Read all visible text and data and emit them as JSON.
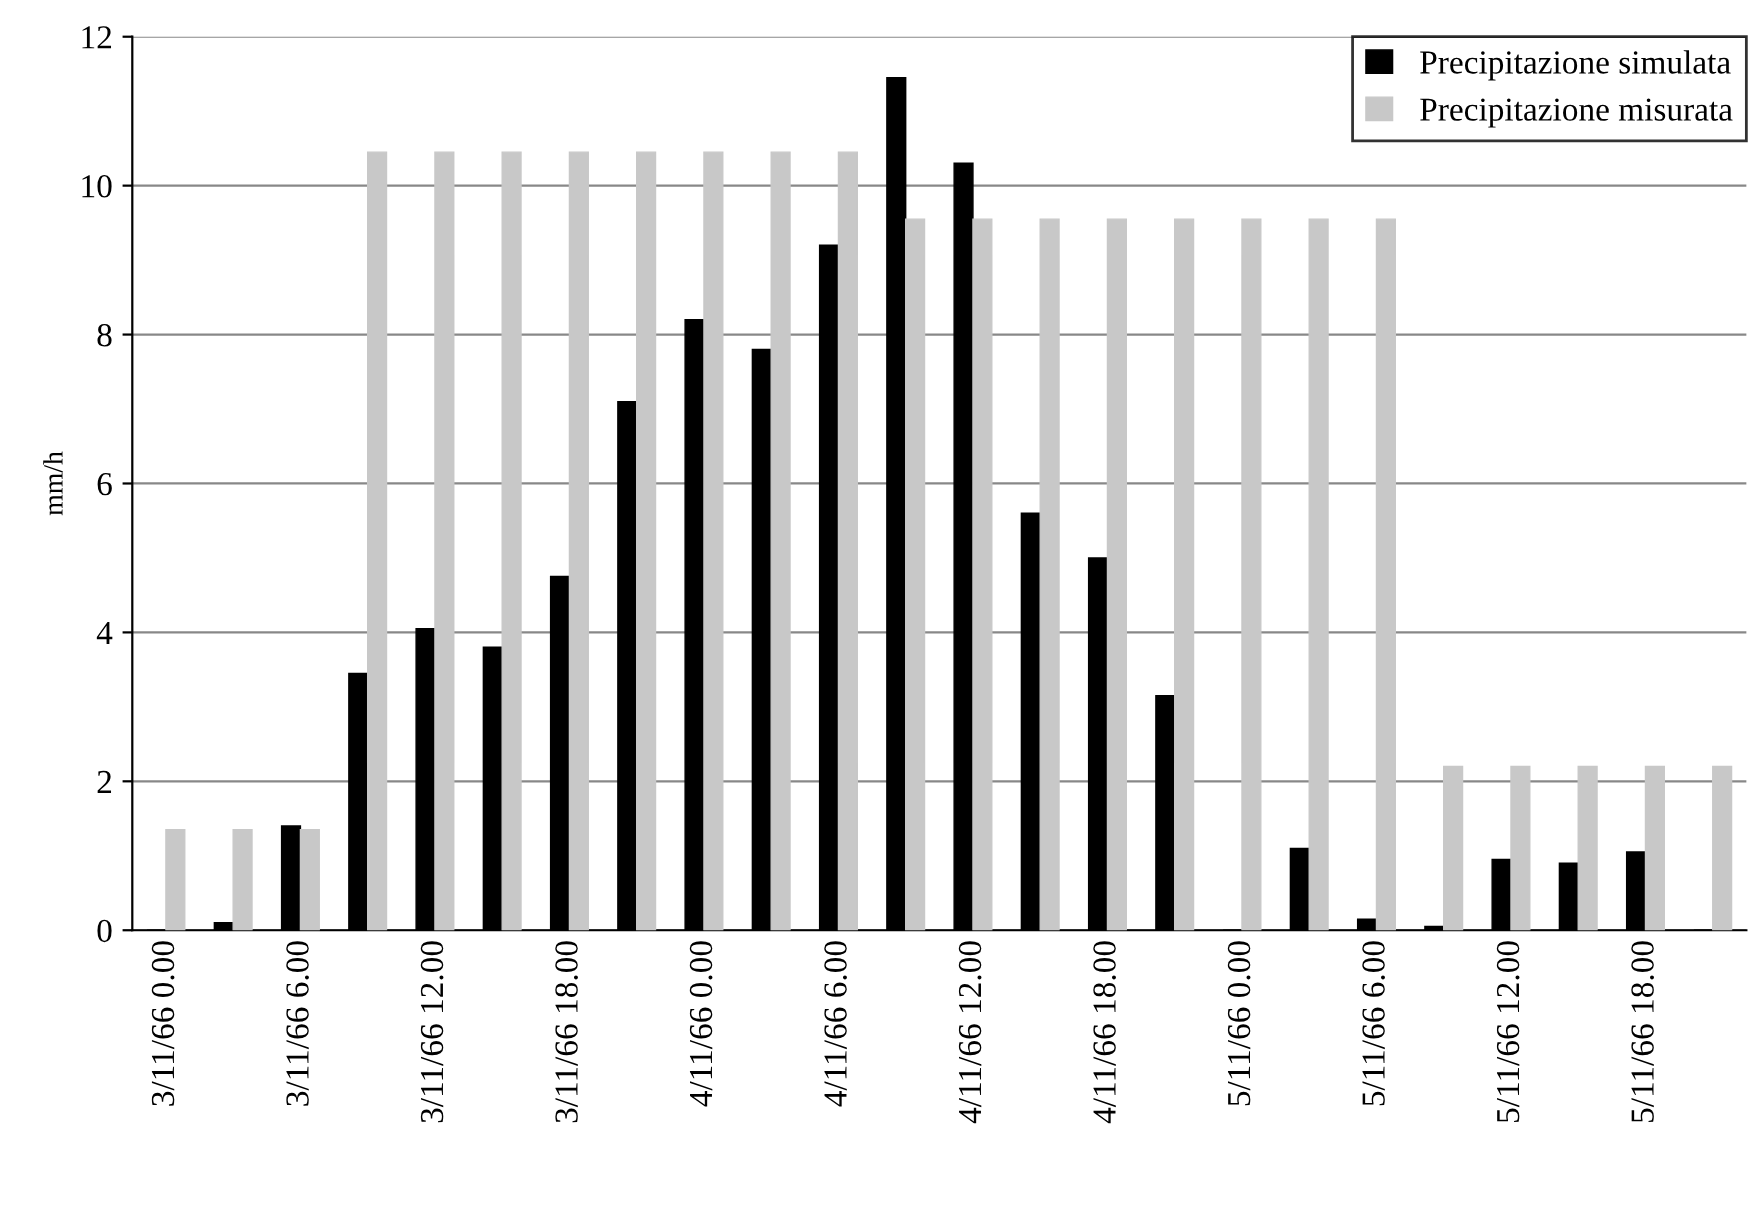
{
  "chart_data": {
    "type": "bar",
    "ylabel": "mm/h",
    "categories": [
      "3/11/66 0.00",
      null,
      "3/11/66 6.00",
      null,
      "3/11/66 12.00",
      null,
      "3/11/66 18.00",
      null,
      "4/11/66 0.00",
      null,
      "4/11/66 6.00",
      null,
      "4/11/66 12.00",
      null,
      "4/11/66 18.00",
      null,
      "5/11/66 0.00",
      null,
      "5/11/66 6.00",
      null,
      "5/11/66 12.00",
      null,
      "5/11/66 18.00",
      null
    ],
    "series": [
      {
        "name": "Precipitazione simulata",
        "color": "#000000",
        "values": [
          0,
          0.1,
          1.4,
          3.45,
          4.05,
          3.8,
          4.75,
          7.1,
          8.2,
          7.8,
          9.2,
          11.45,
          10.3,
          5.6,
          5.0,
          3.15,
          0,
          1.1,
          0.15,
          0.05,
          0.95,
          0.9,
          1.05,
          0
        ]
      },
      {
        "name": "Precipitazione misurata",
        "color": "#c8c8c8",
        "values": [
          1.35,
          1.35,
          1.35,
          10.45,
          10.45,
          10.45,
          10.45,
          10.45,
          10.45,
          10.45,
          10.45,
          9.55,
          9.55,
          9.55,
          9.55,
          9.55,
          9.55,
          9.55,
          9.55,
          2.2,
          2.2,
          2.2,
          2.2,
          2.2
        ]
      }
    ],
    "ylim": [
      0,
      12
    ],
    "yticks": [
      0,
      2,
      4,
      6,
      8,
      10,
      12
    ],
    "grid": "y",
    "legend": "top right"
  }
}
